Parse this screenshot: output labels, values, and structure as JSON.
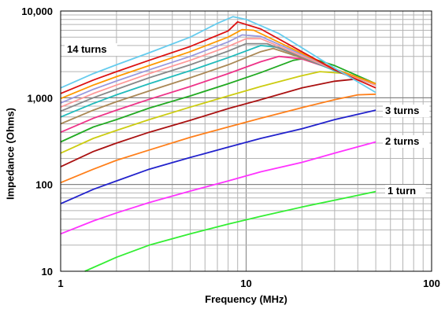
{
  "chart_data": {
    "type": "line",
    "xlabel": "Frequency (MHz)",
    "ylabel": "Impedance (Ohms)",
    "xscale": "log",
    "yscale": "log",
    "xlim": [
      1,
      100
    ],
    "ylim": [
      10,
      10000
    ],
    "grid": true,
    "x_ticks": [
      "1",
      "10",
      "100"
    ],
    "y_ticks": [
      "10",
      "100",
      "1,000",
      "10,000"
    ],
    "annotations": [
      "14 turns",
      "3 turns",
      "2 turns",
      "1 turn"
    ],
    "series": [
      {
        "name": "1 turn",
        "color": "#33ee33",
        "x": [
          1.35,
          2,
          3,
          5,
          8,
          12,
          20,
          30,
          50
        ],
        "y": [
          10,
          14.5,
          20,
          27,
          35,
          43,
          55,
          66,
          83
        ]
      },
      {
        "name": "2 turns",
        "color": "#ff33ff",
        "x": [
          1,
          1.5,
          2,
          3,
          5,
          8,
          12,
          20,
          30,
          50
        ],
        "y": [
          27,
          38,
          47,
          62,
          84,
          110,
          140,
          180,
          230,
          310
        ]
      },
      {
        "name": "3 turns",
        "color": "#2222cc",
        "x": [
          1,
          1.5,
          2,
          3,
          5,
          8,
          12,
          20,
          30,
          50
        ],
        "y": [
          60,
          88,
          110,
          150,
          205,
          270,
          340,
          440,
          560,
          720
        ]
      },
      {
        "name": "",
        "color": "#ff7f1a",
        "x": [
          1,
          1.5,
          2,
          3,
          5,
          8,
          12,
          20,
          30,
          40,
          50
        ],
        "y": [
          105,
          150,
          190,
          250,
          350,
          460,
          580,
          770,
          950,
          1080,
          1100
        ]
      },
      {
        "name": "",
        "color": "#aa1111",
        "x": [
          1,
          1.5,
          2,
          3,
          5,
          8,
          12,
          20,
          30,
          40,
          50
        ],
        "y": [
          160,
          240,
          300,
          400,
          550,
          750,
          950,
          1300,
          1550,
          1650,
          1450
        ]
      },
      {
        "name": "",
        "color": "#cccc11",
        "x": [
          1,
          1.5,
          2,
          3,
          5,
          8,
          12,
          20,
          25,
          35,
          50
        ],
        "y": [
          230,
          340,
          420,
          560,
          780,
          1050,
          1350,
          1800,
          2000,
          1900,
          1450
        ]
      },
      {
        "name": "",
        "color": "#22aa22",
        "x": [
          1,
          1.5,
          2,
          3,
          5,
          8,
          12,
          18,
          22,
          30,
          50
        ],
        "y": [
          310,
          460,
          560,
          760,
          1050,
          1450,
          1950,
          2700,
          2900,
          2350,
          1450
        ]
      },
      {
        "name": "",
        "color": "#ee3388",
        "x": [
          1,
          1.5,
          2,
          3,
          5,
          8,
          12,
          15,
          20,
          30,
          50
        ],
        "y": [
          400,
          580,
          720,
          960,
          1350,
          1900,
          2600,
          3000,
          2800,
          2100,
          1400
        ]
      },
      {
        "name": "",
        "color": "#aa8855",
        "x": [
          1,
          1.5,
          2,
          3,
          5,
          8,
          12,
          14,
          18,
          30,
          50
        ],
        "y": [
          500,
          720,
          900,
          1200,
          1700,
          2400,
          3400,
          3700,
          3100,
          2100,
          1400
        ]
      },
      {
        "name": "",
        "color": "#22bbbb",
        "x": [
          1,
          1.5,
          2,
          3,
          5,
          8,
          12,
          15,
          30,
          50
        ],
        "y": [
          600,
          860,
          1080,
          1450,
          2050,
          2900,
          4000,
          3800,
          2050,
          1400
        ]
      },
      {
        "name": "",
        "color": "#888888",
        "x": [
          1,
          1.5,
          2,
          3,
          5,
          8,
          10,
          13,
          30,
          50
        ],
        "y": [
          700,
          1000,
          1250,
          1700,
          2400,
          3450,
          4200,
          4200,
          2100,
          1400
        ]
      },
      {
        "name": "",
        "color": "#ff9999",
        "x": [
          1,
          1.5,
          2,
          3,
          5,
          8,
          10,
          12,
          30,
          50
        ],
        "y": [
          780,
          1120,
          1400,
          1900,
          2700,
          3900,
          4800,
          4800,
          2100,
          1400
        ]
      },
      {
        "name": "",
        "color": "#9999dd",
        "x": [
          1,
          1.5,
          2,
          3,
          5,
          8,
          9.5,
          12,
          30,
          50
        ],
        "y": [
          870,
          1250,
          1560,
          2100,
          3000,
          4400,
          5300,
          5100,
          2150,
          1450
        ]
      },
      {
        "name": "",
        "color": "#ff9900",
        "x": [
          1,
          1.5,
          2,
          3,
          5,
          8,
          9.5,
          11,
          30,
          50
        ],
        "y": [
          980,
          1400,
          1750,
          2350,
          3400,
          5000,
          6100,
          6000,
          2150,
          1450
        ]
      },
      {
        "name": "",
        "color": "#dd1111",
        "x": [
          1,
          1.5,
          2,
          3,
          5,
          8,
          9,
          12,
          30,
          50
        ],
        "y": [
          1120,
          1600,
          2000,
          2700,
          3900,
          5900,
          7500,
          6200,
          2100,
          1300
        ]
      },
      {
        "name": "14 turns",
        "color": "#66ccee",
        "x": [
          1,
          1.5,
          2,
          3,
          5,
          7,
          8.5,
          10,
          15,
          30,
          50
        ],
        "y": [
          1300,
          1900,
          2400,
          3300,
          5000,
          7200,
          8600,
          8000,
          5500,
          2200,
          1150
        ]
      }
    ]
  }
}
